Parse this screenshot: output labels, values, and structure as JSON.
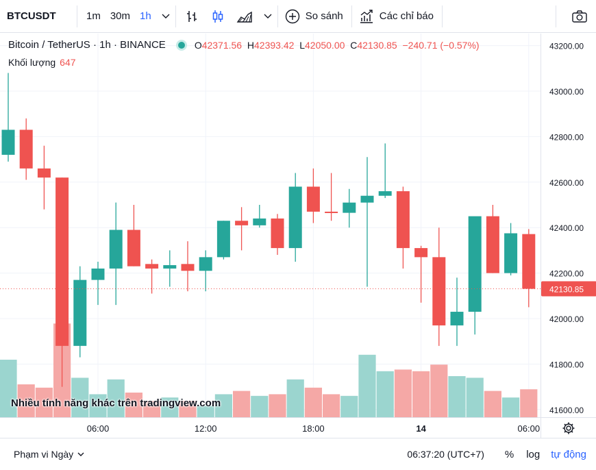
{
  "toolbar": {
    "symbol": "BTCUSDT",
    "intervals": [
      "1m",
      "30m",
      "1h"
    ],
    "active_interval": "1h",
    "compare_label": "So sánh",
    "indicators_label": "Các chỉ báo",
    "icons": [
      "chevron-down-icon",
      "bar-chart-icon",
      "candles-icon",
      "area-chart-icon",
      "plus-circle-icon",
      "indicators-icon",
      "camera-icon"
    ]
  },
  "legend": {
    "title": "Bitcoin / TetherUS · 1h · BINANCE",
    "o_key": "O",
    "o_val": "42371.56",
    "h_key": "H",
    "h_val": "42393.42",
    "l_key": "L",
    "l_val": "42050.00",
    "c_key": "C",
    "c_val": "42130.85",
    "change": "−240.71 (−0.57%)",
    "volume_label": "Khối lượng",
    "volume_value": "647"
  },
  "watermark": "Nhiều tính năng khác trên tradingview.com",
  "bottom": {
    "range_label": "Phạm vi Ngày",
    "clock": "06:37:20 (UTC+7)",
    "percent": "%",
    "log": "log",
    "auto": "tự động"
  },
  "colors": {
    "up": "#26a69a",
    "down": "#ef5350",
    "up_volume": "#9bd5cf",
    "down_volume": "#f5a8a6",
    "accent": "#2962ff"
  },
  "chart_data": {
    "type": "candlestick",
    "symbol": "Bitcoin / TetherUS",
    "interval": "1h",
    "exchange": "BINANCE",
    "ylim": [
      41550,
      43250
    ],
    "y_ticks": [
      41600,
      41800,
      42000,
      42200,
      42400,
      42600,
      42800,
      43000,
      43200
    ],
    "y_tick_labels": [
      "41600.00",
      "41800.00",
      "42000.00",
      "42200.00",
      "42400.00",
      "42600.00",
      "42800.00",
      "43000.00",
      "43200.00"
    ],
    "x_tick_labels": [
      {
        "label": "06:00",
        "index": 5
      },
      {
        "label": "12:00",
        "index": 11
      },
      {
        "label": "18:00",
        "index": 17
      },
      {
        "label": "14",
        "index": 23,
        "bold": true
      },
      {
        "label": "06:00",
        "index": 29
      }
    ],
    "last_price": 42130.85,
    "last_price_label": "42130.85",
    "candles": [
      {
        "o": 42720,
        "h": 43080,
        "l": 42690,
        "c": 42830,
        "vol": 0.35
      },
      {
        "o": 42830,
        "h": 42880,
        "l": 42610,
        "c": 42660,
        "vol": 0.2
      },
      {
        "o": 42660,
        "h": 42760,
        "l": 42480,
        "c": 42620,
        "vol": 0.18
      },
      {
        "o": 42620,
        "h": 42620,
        "l": 41700,
        "c": 41880,
        "vol": 0.57
      },
      {
        "o": 41880,
        "h": 42230,
        "l": 41830,
        "c": 42170,
        "vol": 0.24
      },
      {
        "o": 42170,
        "h": 42250,
        "l": 42060,
        "c": 42220,
        "vol": 0.14
      },
      {
        "o": 42220,
        "h": 42510,
        "l": 42060,
        "c": 42390,
        "vol": 0.23
      },
      {
        "o": 42390,
        "h": 42500,
        "l": 42230,
        "c": 42230,
        "vol": 0.15
      },
      {
        "o": 42240,
        "h": 42260,
        "l": 42110,
        "c": 42220,
        "vol": 0.1
      },
      {
        "o": 42220,
        "h": 42300,
        "l": 42140,
        "c": 42235,
        "vol": 0.12
      },
      {
        "o": 42240,
        "h": 42340,
        "l": 42120,
        "c": 42210,
        "vol": 0.1
      },
      {
        "o": 42210,
        "h": 42300,
        "l": 42120,
        "c": 42270,
        "vol": 0.07
      },
      {
        "o": 42270,
        "h": 42430,
        "l": 42260,
        "c": 42430,
        "vol": 0.14
      },
      {
        "o": 42430,
        "h": 42490,
        "l": 42300,
        "c": 42410,
        "vol": 0.16
      },
      {
        "o": 42410,
        "h": 42500,
        "l": 42400,
        "c": 42440,
        "vol": 0.13
      },
      {
        "o": 42440,
        "h": 42460,
        "l": 42280,
        "c": 42310,
        "vol": 0.14
      },
      {
        "o": 42310,
        "h": 42640,
        "l": 42250,
        "c": 42580,
        "vol": 0.23
      },
      {
        "o": 42580,
        "h": 42660,
        "l": 42420,
        "c": 42470,
        "vol": 0.18
      },
      {
        "o": 42470,
        "h": 42640,
        "l": 42430,
        "c": 42465,
        "vol": 0.14
      },
      {
        "o": 42465,
        "h": 42570,
        "l": 42400,
        "c": 42510,
        "vol": 0.13
      },
      {
        "o": 42510,
        "h": 42710,
        "l": 42140,
        "c": 42540,
        "vol": 0.38
      },
      {
        "o": 42540,
        "h": 42770,
        "l": 42530,
        "c": 42560,
        "vol": 0.28
      },
      {
        "o": 42560,
        "h": 42580,
        "l": 42220,
        "c": 42310,
        "vol": 0.29
      },
      {
        "o": 42310,
        "h": 42320,
        "l": 42070,
        "c": 42270,
        "vol": 0.28
      },
      {
        "o": 42270,
        "h": 42400,
        "l": 41880,
        "c": 41970,
        "vol": 0.32
      },
      {
        "o": 41970,
        "h": 42180,
        "l": 41880,
        "c": 42030,
        "vol": 0.25
      },
      {
        "o": 42030,
        "h": 42440,
        "l": 41930,
        "c": 42450,
        "vol": 0.24
      },
      {
        "o": 42450,
        "h": 42500,
        "l": 42200,
        "c": 42200,
        "vol": 0.16
      },
      {
        "o": 42200,
        "h": 42420,
        "l": 42190,
        "c": 42375,
        "vol": 0.12
      },
      {
        "o": 42371.56,
        "h": 42393.42,
        "l": 42050.0,
        "c": 42130.85,
        "vol": 0.17
      }
    ]
  }
}
